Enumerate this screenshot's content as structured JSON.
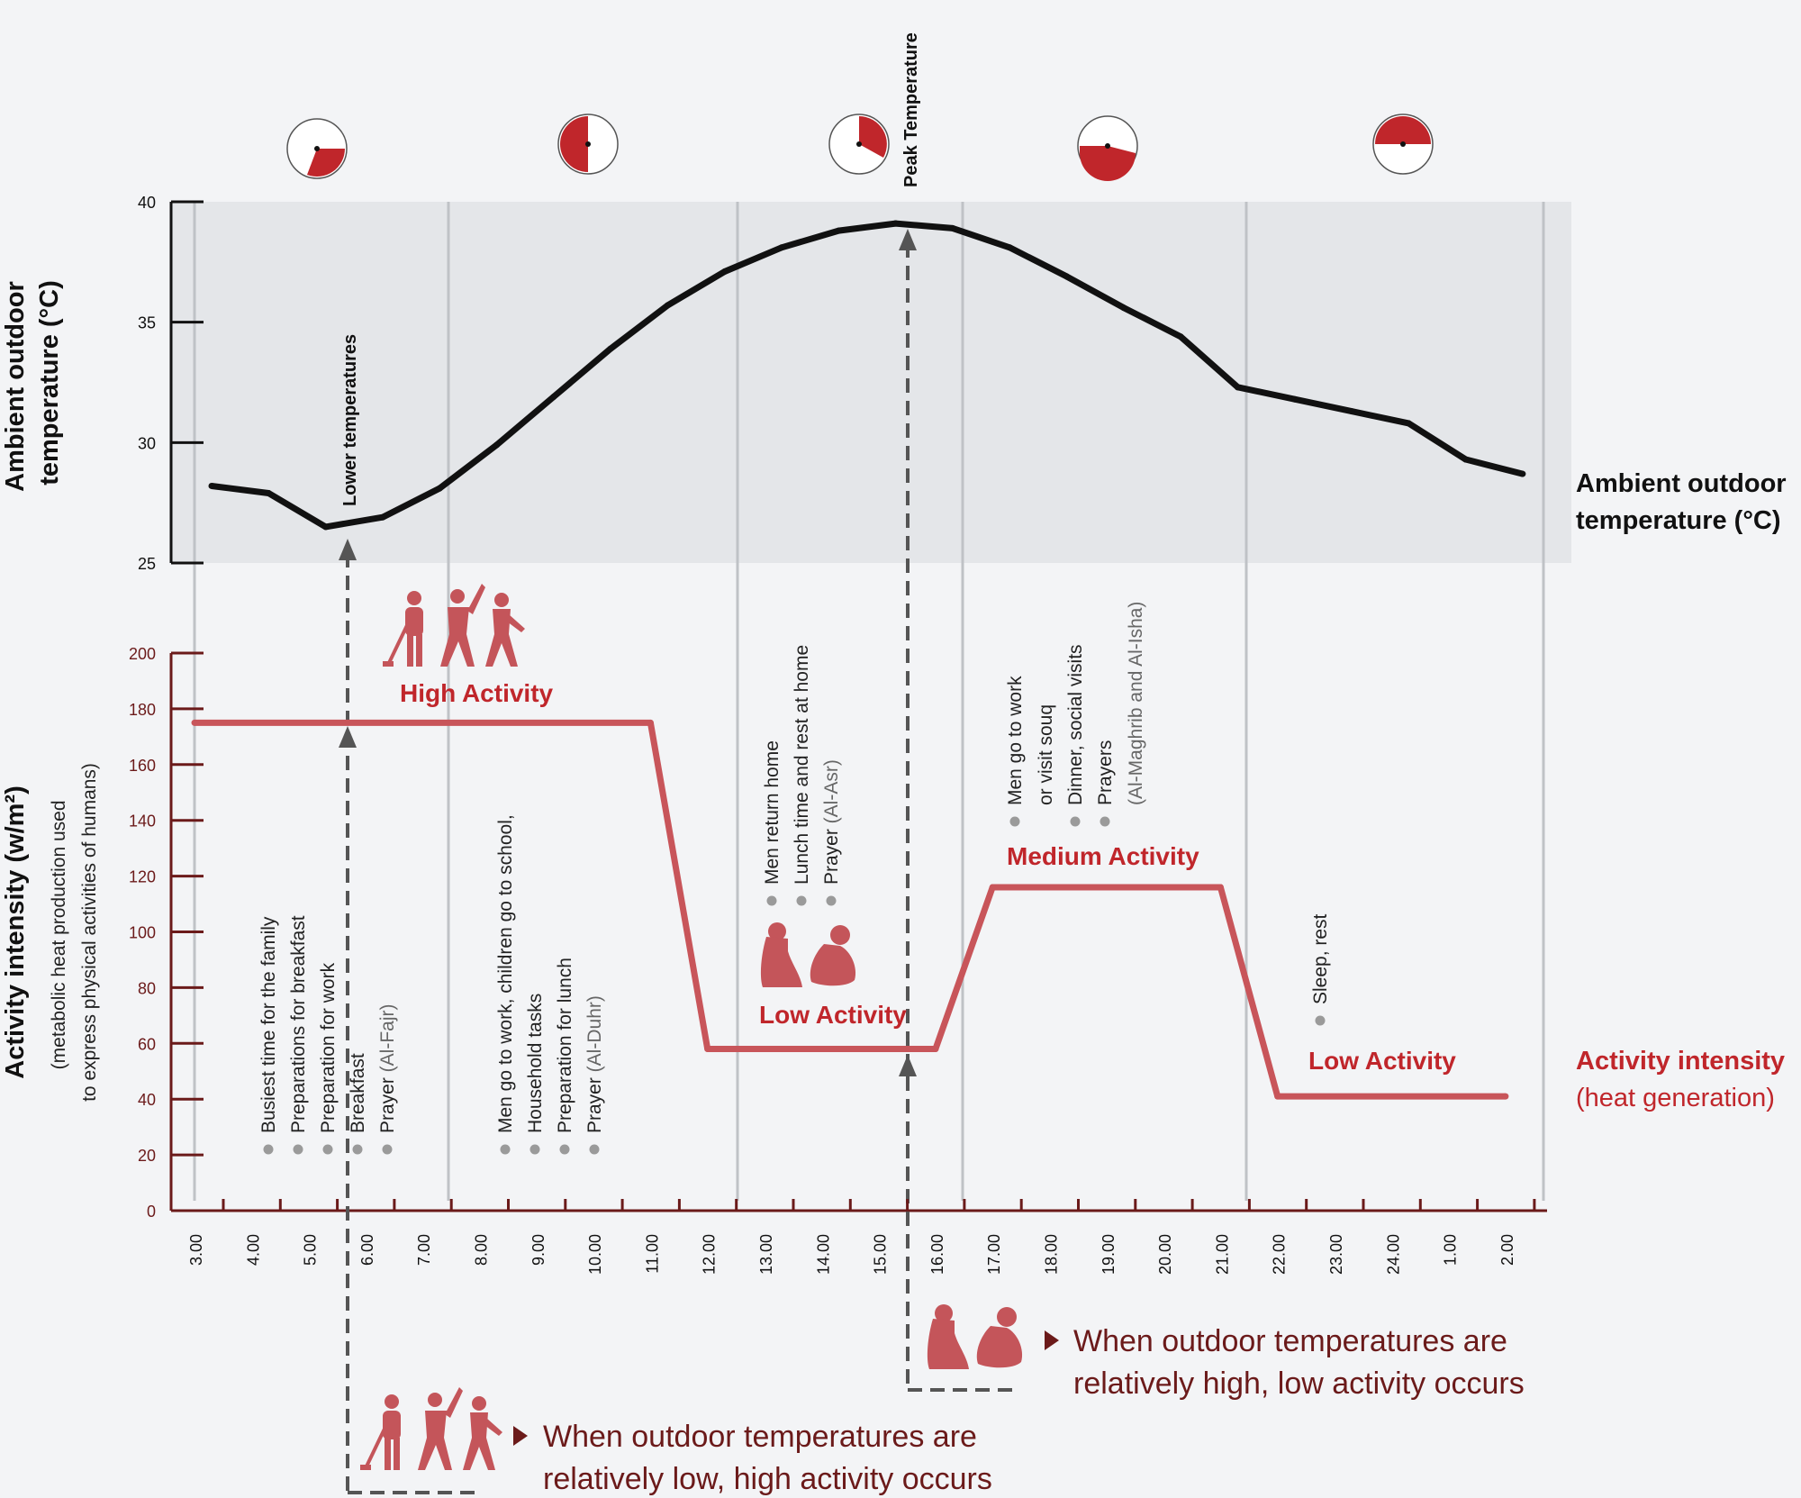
{
  "chart_data": [
    {
      "type": "line",
      "name": "temperature",
      "ylabel": [
        "Ambient outdoor",
        "temperature (°C)"
      ],
      "ylim": [
        25,
        40
      ],
      "yticks": [
        "25",
        "30",
        "35",
        "40"
      ],
      "series_label": [
        "Ambient outdoor",
        "temperature (°C)"
      ],
      "x": [
        3.3,
        4.3,
        5.3,
        6.3,
        7.3,
        8.3,
        9.3,
        10.3,
        11.3,
        12.3,
        13.3,
        14.3,
        15.3,
        16.3,
        17.3,
        18.3,
        19.3,
        20.3,
        21.3,
        22.3,
        23.3,
        24.3,
        25.3,
        26.3
      ],
      "values": [
        28.2,
        27.9,
        26.5,
        26.9,
        28.1,
        29.9,
        31.9,
        33.9,
        35.7,
        37.1,
        38.1,
        38.8,
        39.1,
        38.9,
        38.1,
        36.9,
        35.6,
        34.4,
        32.3,
        31.8,
        31.3,
        30.8,
        29.3,
        28.7
      ],
      "annotations": [
        "Lower temperatures",
        "Peak Temperature"
      ]
    },
    {
      "type": "line",
      "name": "activity",
      "ylabel": "Activity intensity (w/m²)",
      "ylabel_sub": [
        "(metabolic heat production used",
        "to express physical activities of humans)"
      ],
      "ylim": [
        0,
        200
      ],
      "yticks": [
        "0",
        "20",
        "40",
        "60",
        "80",
        "100",
        "120",
        "140",
        "160",
        "180",
        "200"
      ],
      "series_label": [
        "Activity intensity",
        "(heat generation)"
      ],
      "x": [
        3,
        11,
        12,
        16,
        17,
        21,
        22,
        26
      ],
      "values": [
        175,
        175,
        58,
        58,
        116,
        116,
        41,
        41
      ],
      "levels": [
        "High Activity",
        "Low Activity",
        "Medium Activity",
        "Low Activity"
      ]
    }
  ],
  "x_tick_labels": [
    "3.00",
    "4.00",
    "5.00",
    "6.00",
    "7.00",
    "8.00",
    "9.00",
    "10.00",
    "11.00",
    "12.00",
    "13.00",
    "14.00",
    "15.00",
    "16.00",
    "17.00",
    "18.00",
    "19.00",
    "20.00",
    "21.00",
    "22.00",
    "23.00",
    "24.00",
    "1.00",
    "2.00"
  ],
  "activity_groups": [
    {
      "items": [
        {
          "text": "Busiest time for the family"
        },
        {
          "text": "Preparations for breakfast"
        },
        {
          "text": "Preparation for work"
        },
        {
          "text": "Breakfast"
        },
        {
          "text": "Prayer ",
          "paren": "(Al-Fajr)"
        }
      ]
    },
    {
      "items": [
        {
          "text": "Men go to work, children go to school,"
        },
        {
          "text": "Household tasks"
        },
        {
          "text": "Preparation for lunch"
        },
        {
          "text": "Prayer ",
          "paren": "(Al-Duhr)"
        }
      ]
    },
    {
      "items": [
        {
          "text": "Men return home"
        },
        {
          "text": "Lunch time and rest at home"
        },
        {
          "text": "Prayer ",
          "paren": "(Al-Asr)"
        }
      ]
    },
    {
      "items": [
        {
          "text": "Men go to work",
          "text2": "or visit souq"
        },
        {
          "text": "Dinner, social visits"
        },
        {
          "text": "Prayers",
          "paren": "(Al-Maghrib and Al-Isha)"
        }
      ]
    },
    {
      "items": [
        {
          "text": "Sleep, rest"
        }
      ]
    }
  ],
  "notes": {
    "high": [
      "When outdoor temperatures are",
      "relatively low, high activity occurs"
    ],
    "low": [
      "When outdoor temperatures are",
      "relatively high, low activity occurs"
    ]
  },
  "colors": {
    "accent": "#c0262b",
    "activity_line": "#c8555a",
    "activity_label": "#c0262b",
    "dark_red": "#6b1a1a",
    "temp_band": "#e4e6e9",
    "background": "#f3f4f6"
  }
}
